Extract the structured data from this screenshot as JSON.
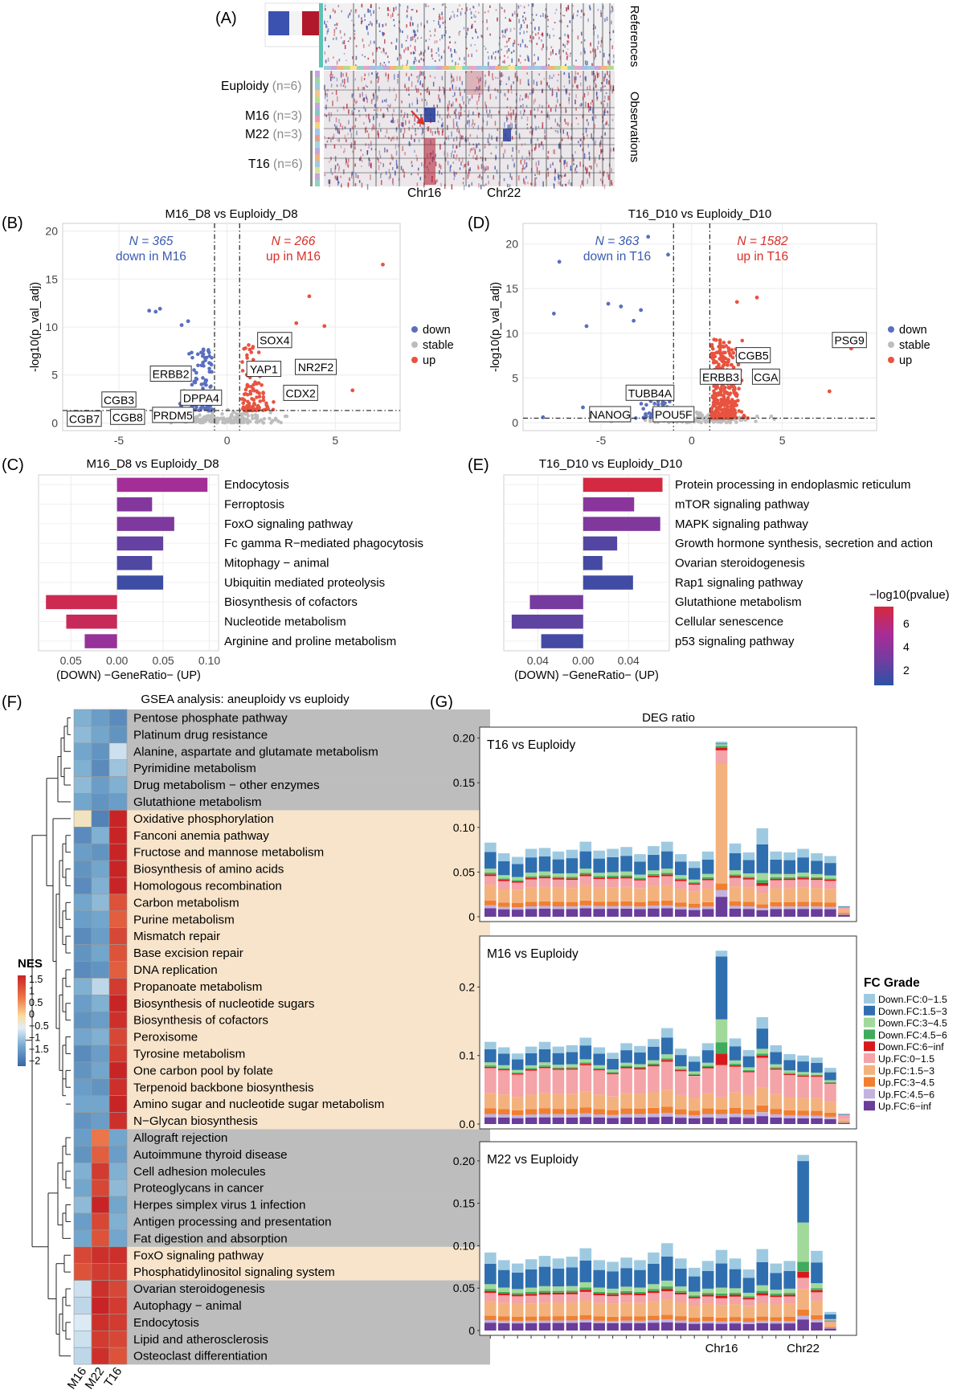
{
  "panel_letters": {
    "A": "(A)",
    "B": "(B)",
    "C": "(C)",
    "D": "(D)",
    "E": "(E)",
    "F": "(F)",
    "G": "(G)"
  },
  "panelA": {
    "side_labels": {
      "references": "References",
      "observations": "Observations"
    },
    "groups": [
      {
        "name": "Euploidy",
        "n": "(n=6)"
      },
      {
        "name": "M16",
        "n": "(n=3)"
      },
      {
        "name": "M22",
        "n": "(n=3)"
      },
      {
        "name": "T16",
        "n": "(n=6)"
      }
    ],
    "chr_labels": [
      "Chr16",
      "Chr22"
    ],
    "colors": {
      "up": "#b2182b",
      "down": "#2a3f9c",
      "ref_bar": "#5bc4b4"
    }
  },
  "chart_data": [
    {
      "panel": "B",
      "type": "scatter",
      "title": "M16_D8 vs Euploidy_D8",
      "ylabel": "-log10(p_val_adj)",
      "xlim": [
        -7.6,
        8
      ],
      "ylim": [
        -0.8,
        20.8
      ],
      "xticks": [
        -5,
        0,
        5
      ],
      "yticks": [
        0,
        5,
        10,
        15,
        20
      ],
      "vlines": [
        -0.58,
        0.58
      ],
      "hline": 1.3,
      "annotations": {
        "down_count": "N = 365",
        "down_text": "down in M16",
        "up_count": "N = 266",
        "up_text": "up in M16"
      },
      "legend": [
        "down",
        "stable",
        "up"
      ],
      "colors": {
        "down": "#5a6fbf",
        "stable": "#bdbdbd",
        "up": "#e8533f"
      },
      "genes": [
        {
          "label": "CGB3",
          "x": -5.0,
          "y": 2.4
        },
        {
          "label": "CGB7",
          "x": -6.6,
          "y": 0.4
        },
        {
          "label": "CGB8",
          "x": -4.6,
          "y": 0.6
        },
        {
          "label": "PRDM5",
          "x": -2.5,
          "y": 0.8
        },
        {
          "label": "DPPA4",
          "x": -1.2,
          "y": 2.6
        },
        {
          "label": "ERBB2",
          "x": -2.6,
          "y": 5.1
        },
        {
          "label": "SOX4",
          "x": 2.2,
          "y": 8.6
        },
        {
          "label": "YAP1",
          "x": 1.7,
          "y": 5.6
        },
        {
          "label": "NR2F2",
          "x": 4.1,
          "y": 5.8
        },
        {
          "label": "CDX2",
          "x": 3.4,
          "y": 3.1
        }
      ]
    },
    {
      "panel": "D",
      "type": "scatter",
      "title": "T16_D10 vs Euploidy_D10",
      "ylabel": "-log10(p_val_adj)",
      "xlim": [
        -9.3,
        10.2
      ],
      "ylim": [
        -0.9,
        22.3
      ],
      "xticks": [
        -5,
        0,
        5
      ],
      "yticks": [
        0,
        5,
        10,
        15,
        20
      ],
      "vlines": [
        -1.0,
        1.0
      ],
      "hline": 0.5,
      "annotations": {
        "down_count": "N = 363",
        "down_text": "down in T16",
        "up_count": "N = 1582",
        "up_text": "up in T16"
      },
      "legend": [
        "down",
        "stable",
        "up"
      ],
      "colors": {
        "down": "#5a6fbf",
        "stable": "#bdbdbd",
        "up": "#e8533f"
      },
      "genes": [
        {
          "label": "PSG9",
          "x": 8.7,
          "y": 9.2
        },
        {
          "label": "CGB5",
          "x": 3.4,
          "y": 7.5
        },
        {
          "label": "ERBB3",
          "x": 1.6,
          "y": 5.1
        },
        {
          "label": "CGA",
          "x": 4.1,
          "y": 5.1
        },
        {
          "label": "TUBB4A",
          "x": -2.3,
          "y": 3.3
        },
        {
          "label": "NANOG",
          "x": -4.5,
          "y": 0.9
        },
        {
          "label": "POU5F",
          "x": -1.0,
          "y": 0.9
        }
      ]
    },
    {
      "panel": "C",
      "type": "bar",
      "title": "M16_D8 vs Euploidy_D8",
      "xlabel": "(DOWN) −GeneRatio− (UP)",
      "xlim": [
        -0.085,
        0.11
      ],
      "xticks": [
        "0.05",
        "0.00",
        "0.05",
        "0.10"
      ],
      "categories": [
        "Endocytosis",
        "Ferroptosis",
        "FoxO signaling pathway",
        "Fc gamma R−mediated phagocytosis",
        "Mitophagy − animal",
        "Ubiquitin mediated proteolysis",
        "Biosynthesis of cofactors",
        "Nucleotide metabolism",
        "Arginine and proline metabolism"
      ],
      "values": [
        0.098,
        0.038,
        0.062,
        0.05,
        0.038,
        0.05,
        -0.077,
        -0.055,
        -0.035
      ],
      "log10p": [
        5.0,
        4.0,
        3.8,
        3.1,
        2.5,
        2.0,
        6.6,
        6.4,
        4.6
      ]
    },
    {
      "panel": "E",
      "type": "bar",
      "title": "T16_D10 vs Euploidy_D10",
      "xlabel": "(DOWN) −GeneRatio− (UP)",
      "xlim": [
        -0.07,
        0.076
      ],
      "xticks": [
        "0.04",
        "0.00",
        "0.04"
      ],
      "categories": [
        "Protein processing in endoplasmic reticulum",
        "mTOR signaling pathway",
        "MAPK signaling pathway",
        "Growth hormone synthesis, secretion and action",
        "Ovarian steroidogenesis",
        "Rap1 signaling pathway",
        "Glutathione metabolism",
        "Cellular senescence",
        "p53 signaling pathway"
      ],
      "values": [
        0.07,
        0.045,
        0.068,
        0.03,
        0.017,
        0.044,
        -0.047,
        -0.063,
        -0.037
      ],
      "log10p": [
        6.9,
        4.2,
        3.9,
        2.6,
        2.2,
        2.1,
        3.6,
        2.9,
        2.2
      ],
      "colorbar": {
        "title": "−log10(pvalue)",
        "ticks": [
          "6",
          "4",
          "2"
        ]
      }
    },
    {
      "panel": "F",
      "type": "heatmap",
      "title": "GSEA analysis: aneuploidy vs euploidy",
      "columns": [
        "M16",
        "M22",
        "T16"
      ],
      "rows": [
        {
          "name": "Pentose phosphate pathway",
          "group": "gray",
          "values": [
            -1.2,
            -1.4,
            -1.6
          ]
        },
        {
          "name": "Platinum drug resistance",
          "group": "gray",
          "values": [
            -1.1,
            -1.3,
            -1.5
          ]
        },
        {
          "name": "Alanine, aspartate and glutamate metabolism",
          "group": "gray",
          "values": [
            -1.3,
            -1.5,
            -0.7
          ]
        },
        {
          "name": "Pyrimidine metabolism",
          "group": "gray",
          "values": [
            -1.2,
            -1.6,
            -1.0
          ]
        },
        {
          "name": "Drug metabolism − other enzymes",
          "group": "gray",
          "values": [
            -1.1,
            -1.4,
            -1.2
          ]
        },
        {
          "name": "Glutathione metabolism",
          "group": "gray",
          "values": [
            -1.3,
            -1.5,
            -1.4
          ]
        },
        {
          "name": "Oxidative phosphorylation",
          "group": "tan",
          "values": [
            -0.1,
            -1.7,
            1.6
          ]
        },
        {
          "name": "Fanconi anemia pathway",
          "group": "tan",
          "values": [
            -1.6,
            -1.2,
            1.8
          ]
        },
        {
          "name": "Fructose and mannose metabolism",
          "group": "tan",
          "values": [
            -1.4,
            -1.5,
            1.6
          ]
        },
        {
          "name": "Biosynthesis of amino acids",
          "group": "tan",
          "values": [
            -1.5,
            -1.3,
            1.7
          ]
        },
        {
          "name": "Homologous recombination",
          "group": "tan",
          "values": [
            -1.6,
            -1.2,
            1.6
          ]
        },
        {
          "name": "Carbon metabolism",
          "group": "tan",
          "values": [
            -1.3,
            -1.1,
            1.2
          ]
        },
        {
          "name": "Purine metabolism",
          "group": "tan",
          "values": [
            -1.4,
            -1.3,
            1.1
          ]
        },
        {
          "name": "Mismatch repair",
          "group": "tan",
          "values": [
            -1.6,
            -1.4,
            1.3
          ]
        },
        {
          "name": "Base excision repair",
          "group": "tan",
          "values": [
            -1.5,
            -1.3,
            1.2
          ]
        },
        {
          "name": "DNA replication",
          "group": "tan",
          "values": [
            -1.6,
            -1.5,
            1.1
          ]
        },
        {
          "name": "Propanoate metabolism",
          "group": "tan",
          "values": [
            -1.2,
            -0.8,
            1.4
          ]
        },
        {
          "name": "Biosynthesis of nucleotide sugars",
          "group": "tan",
          "values": [
            -1.4,
            -1.2,
            1.6
          ]
        },
        {
          "name": "Biosynthesis of cofactors",
          "group": "tan",
          "values": [
            -1.5,
            -1.4,
            1.5
          ]
        },
        {
          "name": "Peroxisome",
          "group": "tan",
          "values": [
            -1.3,
            -1.2,
            1.3
          ]
        },
        {
          "name": "Tyrosine metabolism",
          "group": "tan",
          "values": [
            -1.6,
            -1.4,
            1.4
          ]
        },
        {
          "name": "One carbon pool by folate",
          "group": "tan",
          "values": [
            -1.5,
            -1.3,
            1.7
          ]
        },
        {
          "name": "Terpenoid backbone biosynthesis",
          "group": "tan",
          "values": [
            -1.4,
            -1.5,
            1.5
          ]
        },
        {
          "name": "Amino sugar and nucleotide sugar metabolism",
          "group": "tan",
          "values": [
            -1.3,
            -1.3,
            1.6
          ]
        },
        {
          "name": "N−Glycan biosynthesis",
          "group": "tan",
          "values": [
            -1.5,
            -1.4,
            1.5
          ]
        },
        {
          "name": "Allograft rejection",
          "group": "gray",
          "values": [
            -1.4,
            0.9,
            -1.3
          ]
        },
        {
          "name": "Autoimmune thyroid disease",
          "group": "gray",
          "values": [
            -1.5,
            1.1,
            -1.4
          ]
        },
        {
          "name": "Cell adhesion molecules",
          "group": "gray",
          "values": [
            -1.2,
            1.4,
            -1.2
          ]
        },
        {
          "name": "Proteoglycans in cancer",
          "group": "gray",
          "values": [
            -1.3,
            1.3,
            -1.1
          ]
        },
        {
          "name": "Herpes simplex virus 1 infection",
          "group": "gray",
          "values": [
            -1.1,
            1.8,
            -1.3
          ]
        },
        {
          "name": "Antigen processing and presentation",
          "group": "gray",
          "values": [
            -1.4,
            1.3,
            -1.2
          ]
        },
        {
          "name": "Fat digestion and absorption",
          "group": "gray",
          "values": [
            -1.3,
            1.2,
            -1.3
          ]
        },
        {
          "name": "FoxO signaling pathway",
          "group": "tan",
          "values": [
            1.3,
            1.5,
            1.5
          ]
        },
        {
          "name": "Phosphatidylinositol signaling system",
          "group": "tan",
          "values": [
            1.2,
            1.4,
            1.4
          ]
        },
        {
          "name": "Ovarian steroidogenesis",
          "group": "gray",
          "values": [
            -0.7,
            1.5,
            1.3
          ]
        },
        {
          "name": "Autophagy − animal",
          "group": "gray",
          "values": [
            -0.8,
            1.6,
            1.4
          ]
        },
        {
          "name": "Endocytosis",
          "group": "gray",
          "values": [
            -0.6,
            1.5,
            1.4
          ]
        },
        {
          "name": "Lipid and atherosclerosis",
          "group": "gray",
          "values": [
            -0.7,
            1.4,
            1.3
          ]
        },
        {
          "name": "Osteoclast differentiation",
          "group": "gray",
          "values": [
            -0.8,
            1.5,
            1.2
          ]
        }
      ],
      "legend": {
        "title": "NES",
        "ticks": [
          "1.5",
          "1",
          "0.5",
          "0",
          "−0.5",
          "−1",
          "−1.5",
          "−2"
        ]
      },
      "colors": {
        "gray": "#bdbdbd",
        "tan": "#f7e4cb"
      }
    },
    {
      "panel": "G",
      "type": "bar",
      "title": "DEG ratio",
      "x_labels": {
        "chr16": "Chr16",
        "chr22": "Chr22"
      },
      "legend_title": "FC Grade",
      "series_names": [
        "Down.FC:0−1.5",
        "Down.FC:1.5−3",
        "Down.FC:3−4.5",
        "Down.FC:4.5−6",
        "Down.FC:6−inf",
        "Up.FC:0−1.5",
        "Up.FC:1.5−3",
        "Up.FC:3−4.5",
        "Up.FC:4.5−6",
        "Up.FC:6−inf"
      ],
      "series_colors": [
        "#9ecae1",
        "#2f6faf",
        "#a1d99b",
        "#41ab5d",
        "#d7191c",
        "#f4a3a8",
        "#f3b27d",
        "#f07f31",
        "#c2b2de",
        "#6a3d9a"
      ],
      "facets": [
        {
          "label": "T16 vs Euploidy",
          "ylim": [
            0,
            0.205
          ],
          "yticks": [
            "0",
            "0.05",
            "0.10",
            "0.15",
            "0.20"
          ],
          "totals": [
            0.083,
            0.071,
            0.067,
            0.076,
            0.077,
            0.073,
            0.075,
            0.084,
            0.074,
            0.076,
            0.078,
            0.07,
            0.079,
            0.084,
            0.07,
            0.062,
            0.073,
            0.196,
            0.082,
            0.072,
            0.099,
            0.073,
            0.072,
            0.076,
            0.071,
            0.068,
            0.012
          ],
          "down_share": [
            0.45,
            0.44,
            0.43,
            0.45,
            0.44,
            0.43,
            0.45,
            0.46,
            0.43,
            0.44,
            0.45,
            0.42,
            0.44,
            0.46,
            0.43,
            0.42,
            0.44,
            0.05,
            0.47,
            0.42,
            0.65,
            0.44,
            0.43,
            0.45,
            0.42,
            0.41,
            0.15
          ]
        },
        {
          "label": "M16 vs Euploidy",
          "ylim": [
            0,
            0.265
          ],
          "yticks": [
            "0.0",
            "0.1",
            "0.2"
          ],
          "totals": [
            0.12,
            0.112,
            0.103,
            0.113,
            0.12,
            0.113,
            0.115,
            0.126,
            0.112,
            0.104,
            0.118,
            0.114,
            0.124,
            0.14,
            0.11,
            0.099,
            0.118,
            0.253,
            0.125,
            0.108,
            0.156,
            0.115,
            0.102,
            0.1,
            0.097,
            0.082,
            0.015
          ],
          "down_share": [
            0.32,
            0.3,
            0.3,
            0.31,
            0.32,
            0.3,
            0.31,
            0.32,
            0.3,
            0.3,
            0.31,
            0.3,
            0.32,
            0.35,
            0.3,
            0.29,
            0.31,
            0.66,
            0.33,
            0.3,
            0.38,
            0.31,
            0.3,
            0.31,
            0.29,
            0.28,
            0.12
          ]
        },
        {
          "label": "M22 vs Euploidy",
          "ylim": [
            0,
            0.215
          ],
          "yticks": [
            "0",
            "0.05",
            "0.10",
            "0.15",
            "0.20"
          ],
          "totals": [
            0.092,
            0.083,
            0.079,
            0.084,
            0.088,
            0.085,
            0.087,
            0.097,
            0.083,
            0.081,
            0.086,
            0.083,
            0.092,
            0.103,
            0.085,
            0.074,
            0.082,
            0.095,
            0.085,
            0.072,
            0.096,
            0.079,
            0.082,
            0.207,
            0.094,
            0.022
          ],
          "down_share": [
            0.52,
            0.5,
            0.49,
            0.51,
            0.52,
            0.5,
            0.51,
            0.53,
            0.5,
            0.5,
            0.51,
            0.5,
            0.52,
            0.55,
            0.5,
            0.49,
            0.51,
            0.6,
            0.53,
            0.49,
            0.57,
            0.5,
            0.51,
            0.7,
            0.52,
            0.5
          ]
        }
      ]
    }
  ]
}
